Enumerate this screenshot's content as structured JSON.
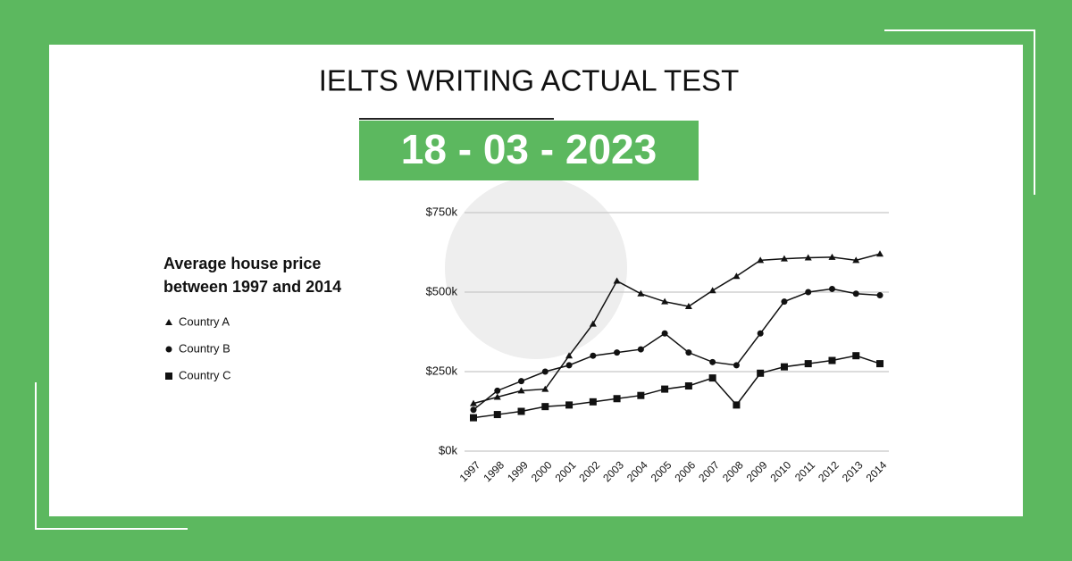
{
  "header": {
    "title": "IELTS WRITING ACTUAL TEST",
    "date": "18 - 03 - 2023"
  },
  "chart_data": {
    "type": "line",
    "title": "Average house price between 1997 and 2014",
    "categories": [
      "1997",
      "1998",
      "1999",
      "2000",
      "2001",
      "2002",
      "2003",
      "2004",
      "2005",
      "2006",
      "2007",
      "2008",
      "2009",
      "2010",
      "2011",
      "2012",
      "2013",
      "2014"
    ],
    "series": [
      {
        "name": "Country A",
        "color": "#111111",
        "marker": "triangle",
        "values": [
          150000,
          170000,
          190000,
          195000,
          300000,
          400000,
          535000,
          495000,
          470000,
          455000,
          505000,
          550000,
          600000,
          605000,
          608000,
          610000,
          600000,
          620000
        ]
      },
      {
        "name": "Country B",
        "color": "#111111",
        "marker": "circle",
        "values": [
          130000,
          190000,
          220000,
          250000,
          270000,
          300000,
          310000,
          320000,
          370000,
          310000,
          280000,
          270000,
          370000,
          470000,
          500000,
          510000,
          495000,
          490000
        ]
      },
      {
        "name": "Country C",
        "color": "#111111",
        "marker": "square",
        "values": [
          105000,
          115000,
          125000,
          140000,
          145000,
          155000,
          165000,
          175000,
          195000,
          205000,
          230000,
          145000,
          245000,
          265000,
          275000,
          285000,
          300000,
          275000
        ]
      }
    ],
    "ylim": [
      0,
      750000
    ],
    "yticks": [
      {
        "value": 0,
        "label": "$0k"
      },
      {
        "value": 250000,
        "label": "$250k"
      },
      {
        "value": 500000,
        "label": "$500k"
      },
      {
        "value": 750000,
        "label": "$750k"
      }
    ],
    "grid": true
  }
}
